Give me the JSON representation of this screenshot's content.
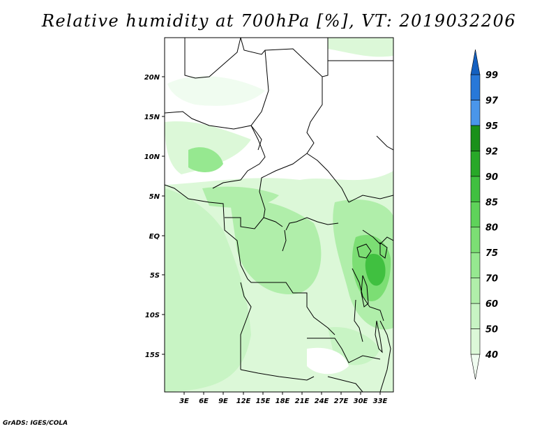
{
  "title": "Relative humidity at 700hPa [%], VT: 2019032206",
  "credit": "GrADS: IGES/COLA",
  "map": {
    "lat_labels": [
      "20N",
      "15N",
      "10N",
      "5N",
      "EQ",
      "5S",
      "10S",
      "15S"
    ],
    "lon_labels": [
      "3E",
      "6E",
      "9E",
      "12E",
      "15E",
      "18E",
      "21E",
      "24E",
      "27E",
      "30E",
      "33E"
    ]
  },
  "colorbar": {
    "levels": [
      "40",
      "50",
      "60",
      "70",
      "75",
      "80",
      "85",
      "90",
      "92",
      "95",
      "97",
      "99"
    ],
    "colors": [
      "#f0fcf0",
      "#dcf8d8",
      "#c8f4c4",
      "#b0eeaa",
      "#96e890",
      "#7cde74",
      "#5fd25a",
      "#40c040",
      "#28a828",
      "#1a901a",
      "#4a96ea",
      "#2878d8",
      "#1460c0"
    ]
  },
  "chart_data": {
    "type": "heatmap",
    "title": "Relative humidity at 700hPa [%], VT: 2019032206",
    "units": "%",
    "valid_time": "2019032206",
    "lat_ticks": [
      "20N",
      "15N",
      "10N",
      "5N",
      "EQ",
      "5S",
      "10S",
      "15S"
    ],
    "lon_ticks": [
      "3E",
      "6E",
      "9E",
      "12E",
      "15E",
      "18E",
      "21E",
      "24E",
      "27E",
      "30E",
      "33E"
    ],
    "contour_levels": [
      40,
      50,
      60,
      70,
      75,
      80,
      85,
      90,
      92,
      95,
      97,
      99
    ]
  }
}
